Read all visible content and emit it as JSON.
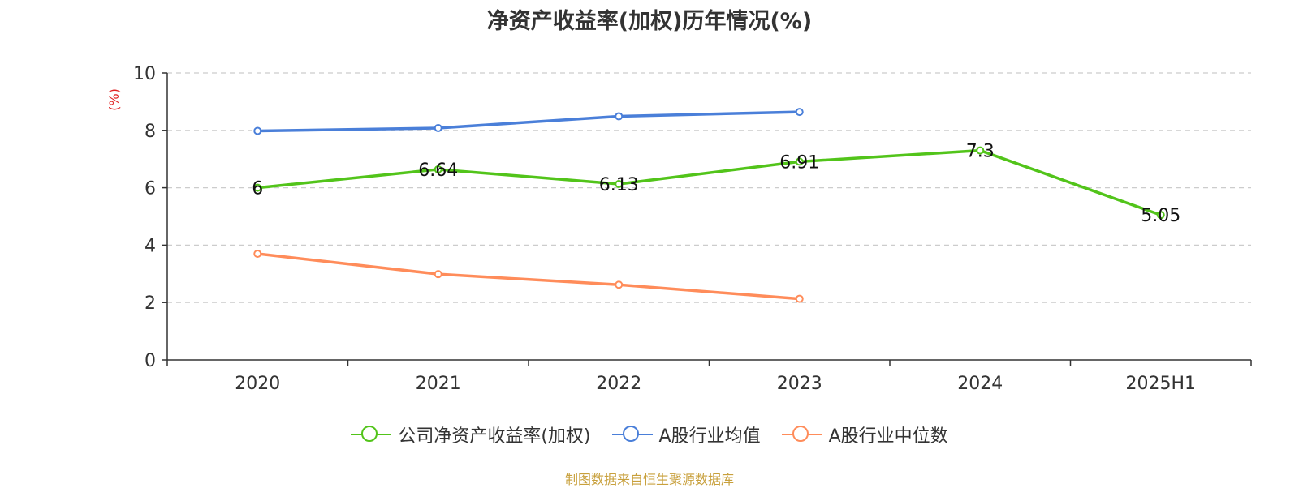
{
  "title": "净资产收益率(加权)历年情况(%)",
  "source": "制图数据来自恒生聚源数据库",
  "colors": {
    "company": "#52c41a",
    "industry_avg": "#4a7fd9",
    "industry_median": "#ff8c5a",
    "ylabel": "#e02020",
    "source": "#c8a03c"
  },
  "chart_data": {
    "type": "line",
    "title": "净资产收益率(加权)历年情况(%)",
    "xlabel": "",
    "ylabel": "(%)",
    "categories": [
      "2020",
      "2021",
      "2022",
      "2023",
      "2024",
      "2025H1"
    ],
    "ylim": [
      0,
      10
    ],
    "yticks": [
      0,
      2,
      4,
      6,
      8,
      10
    ],
    "grid": true,
    "legend_position": "bottom",
    "series": [
      {
        "name": "公司净资产收益率(加权)",
        "values": [
          6,
          6.64,
          6.13,
          6.91,
          7.3,
          5.05
        ],
        "labels": [
          "6",
          "6.64",
          "6.13",
          "6.91",
          "7.3",
          "5.05"
        ],
        "color": "#52c41a",
        "marker": "open-circle"
      },
      {
        "name": "A股行业均值",
        "values": [
          7.98,
          8.08,
          8.49,
          8.64,
          null,
          null
        ],
        "color": "#4a7fd9",
        "marker": "open-circle"
      },
      {
        "name": "A股行业中位数",
        "values": [
          3.7,
          2.99,
          2.62,
          2.13,
          null,
          null
        ],
        "color": "#ff8c5a",
        "marker": "open-circle"
      }
    ]
  }
}
